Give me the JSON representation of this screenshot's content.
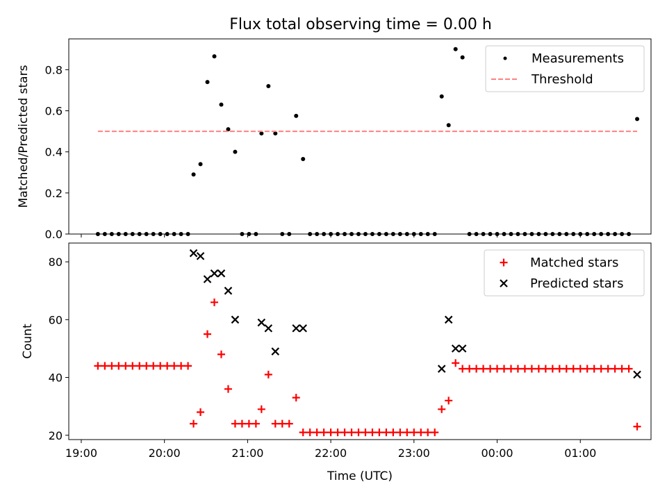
{
  "figure": {
    "title": "Flux total observing time = 0.00 h"
  },
  "chart_data": [
    {
      "type": "scatter",
      "ylabel": "Matched/Predicted stars",
      "xlabel": "",
      "ylim": [
        0.0,
        0.95
      ],
      "yticks": [
        "0.0",
        "0.2",
        "0.4",
        "0.6",
        "0.8"
      ],
      "grid": false,
      "legend_position": "top-right",
      "series": [
        {
          "name": "Measurements",
          "kind": "dots",
          "color": "#000000",
          "points": [
            [
              "19:12",
              0
            ],
            [
              "19:17",
              0
            ],
            [
              "19:22",
              0
            ],
            [
              "19:27",
              0
            ],
            [
              "19:32",
              0
            ],
            [
              "19:37",
              0
            ],
            [
              "19:42",
              0
            ],
            [
              "19:47",
              0
            ],
            [
              "19:52",
              0
            ],
            [
              "19:57",
              0
            ],
            [
              "20:02",
              0
            ],
            [
              "20:07",
              0
            ],
            [
              "20:12",
              0
            ],
            [
              "20:17",
              0
            ],
            [
              "20:21",
              0.29
            ],
            [
              "20:26",
              0.34
            ],
            [
              "20:31",
              0.74
            ],
            [
              "20:36",
              0.865
            ],
            [
              "20:41",
              0.63
            ],
            [
              "20:46",
              0.51
            ],
            [
              "20:51",
              0.4
            ],
            [
              "20:56",
              0
            ],
            [
              "21:01",
              0
            ],
            [
              "21:06",
              0
            ],
            [
              "21:10",
              0.49
            ],
            [
              "21:15",
              0.72
            ],
            [
              "21:20",
              0.49
            ],
            [
              "21:25",
              0
            ],
            [
              "21:30",
              0
            ],
            [
              "21:35",
              0.575
            ],
            [
              "21:40",
              0.365
            ],
            [
              "21:45",
              0
            ],
            [
              "21:50",
              0
            ],
            [
              "21:55",
              0
            ],
            [
              "22:00",
              0
            ],
            [
              "22:05",
              0
            ],
            [
              "22:10",
              0
            ],
            [
              "22:15",
              0
            ],
            [
              "22:20",
              0
            ],
            [
              "22:25",
              0
            ],
            [
              "22:30",
              0
            ],
            [
              "22:35",
              0
            ],
            [
              "22:40",
              0
            ],
            [
              "22:45",
              0
            ],
            [
              "22:50",
              0
            ],
            [
              "22:55",
              0
            ],
            [
              "23:00",
              0
            ],
            [
              "23:05",
              0
            ],
            [
              "23:10",
              0
            ],
            [
              "23:15",
              0
            ],
            [
              "23:20",
              0.67
            ],
            [
              "23:25",
              0.53
            ],
            [
              "23:30",
              0.9
            ],
            [
              "23:35",
              0.86
            ],
            [
              "23:40",
              0
            ],
            [
              "23:45",
              0
            ],
            [
              "23:50",
              0
            ],
            [
              "23:55",
              0
            ],
            [
              "00:00",
              0
            ],
            [
              "00:05",
              0
            ],
            [
              "00:10",
              0
            ],
            [
              "00:15",
              0
            ],
            [
              "00:20",
              0
            ],
            [
              "00:25",
              0
            ],
            [
              "00:30",
              0
            ],
            [
              "00:35",
              0
            ],
            [
              "00:40",
              0
            ],
            [
              "00:45",
              0
            ],
            [
              "00:50",
              0
            ],
            [
              "00:55",
              0
            ],
            [
              "01:00",
              0
            ],
            [
              "01:05",
              0
            ],
            [
              "01:10",
              0
            ],
            [
              "01:15",
              0
            ],
            [
              "01:20",
              0
            ],
            [
              "01:25",
              0
            ],
            [
              "01:30",
              0
            ],
            [
              "01:35",
              0
            ],
            [
              "01:41",
              0.56
            ]
          ]
        },
        {
          "name": "Threshold",
          "kind": "dashed-line",
          "color": "#ff8080",
          "points": [
            [
              "19:12",
              0.5
            ],
            [
              "01:41",
              0.5
            ]
          ]
        }
      ]
    },
    {
      "type": "scatter",
      "ylabel": "Count",
      "xlabel": "Time (UTC)",
      "ylim": [
        18.5,
        86.5
      ],
      "yticks": [
        "20",
        "40",
        "60",
        "80"
      ],
      "xticks": [
        "19:00",
        "20:00",
        "21:00",
        "22:00",
        "23:00",
        "00:00",
        "01:00"
      ],
      "grid": false,
      "legend_position": "top-right",
      "series": [
        {
          "name": "Matched stars",
          "kind": "plus",
          "color": "#ff0000",
          "points": [
            [
              "19:12",
              44
            ],
            [
              "19:17",
              44
            ],
            [
              "19:22",
              44
            ],
            [
              "19:27",
              44
            ],
            [
              "19:32",
              44
            ],
            [
              "19:37",
              44
            ],
            [
              "19:42",
              44
            ],
            [
              "19:47",
              44
            ],
            [
              "19:52",
              44
            ],
            [
              "19:57",
              44
            ],
            [
              "20:02",
              44
            ],
            [
              "20:07",
              44
            ],
            [
              "20:12",
              44
            ],
            [
              "20:17",
              44
            ],
            [
              "20:21",
              24
            ],
            [
              "20:26",
              28
            ],
            [
              "20:31",
              55
            ],
            [
              "20:36",
              66
            ],
            [
              "20:41",
              48
            ],
            [
              "20:46",
              36
            ],
            [
              "20:51",
              24
            ],
            [
              "20:56",
              24
            ],
            [
              "21:01",
              24
            ],
            [
              "21:06",
              24
            ],
            [
              "21:10",
              29
            ],
            [
              "21:15",
              41
            ],
            [
              "21:20",
              24
            ],
            [
              "21:25",
              24
            ],
            [
              "21:30",
              24
            ],
            [
              "21:35",
              33
            ],
            [
              "21:40",
              21
            ],
            [
              "21:45",
              21
            ],
            [
              "21:50",
              21
            ],
            [
              "21:55",
              21
            ],
            [
              "22:00",
              21
            ],
            [
              "22:05",
              21
            ],
            [
              "22:10",
              21
            ],
            [
              "22:15",
              21
            ],
            [
              "22:20",
              21
            ],
            [
              "22:25",
              21
            ],
            [
              "22:30",
              21
            ],
            [
              "22:35",
              21
            ],
            [
              "22:40",
              21
            ],
            [
              "22:45",
              21
            ],
            [
              "22:50",
              21
            ],
            [
              "22:55",
              21
            ],
            [
              "23:00",
              21
            ],
            [
              "23:05",
              21
            ],
            [
              "23:10",
              21
            ],
            [
              "23:15",
              21
            ],
            [
              "23:20",
              29
            ],
            [
              "23:25",
              32
            ],
            [
              "23:30",
              45
            ],
            [
              "23:35",
              43
            ],
            [
              "23:40",
              43
            ],
            [
              "23:45",
              43
            ],
            [
              "23:50",
              43
            ],
            [
              "23:55",
              43
            ],
            [
              "00:00",
              43
            ],
            [
              "00:05",
              43
            ],
            [
              "00:10",
              43
            ],
            [
              "00:15",
              43
            ],
            [
              "00:20",
              43
            ],
            [
              "00:25",
              43
            ],
            [
              "00:30",
              43
            ],
            [
              "00:35",
              43
            ],
            [
              "00:40",
              43
            ],
            [
              "00:45",
              43
            ],
            [
              "00:50",
              43
            ],
            [
              "00:55",
              43
            ],
            [
              "01:00",
              43
            ],
            [
              "01:05",
              43
            ],
            [
              "01:10",
              43
            ],
            [
              "01:15",
              43
            ],
            [
              "01:20",
              43
            ],
            [
              "01:25",
              43
            ],
            [
              "01:30",
              43
            ],
            [
              "01:35",
              43
            ],
            [
              "01:41",
              23
            ]
          ]
        },
        {
          "name": "Predicted stars",
          "kind": "cross",
          "color": "#000000",
          "points": [
            [
              "20:21",
              83
            ],
            [
              "20:26",
              82
            ],
            [
              "20:31",
              74
            ],
            [
              "20:36",
              76
            ],
            [
              "20:41",
              76
            ],
            [
              "20:46",
              70
            ],
            [
              "20:51",
              60
            ],
            [
              "21:10",
              59
            ],
            [
              "21:15",
              57
            ],
            [
              "21:20",
              49
            ],
            [
              "21:35",
              57
            ],
            [
              "21:40",
              57
            ],
            [
              "23:20",
              43
            ],
            [
              "23:25",
              60
            ],
            [
              "23:30",
              50
            ],
            [
              "23:35",
              50
            ],
            [
              "01:41",
              41
            ]
          ]
        }
      ]
    }
  ]
}
